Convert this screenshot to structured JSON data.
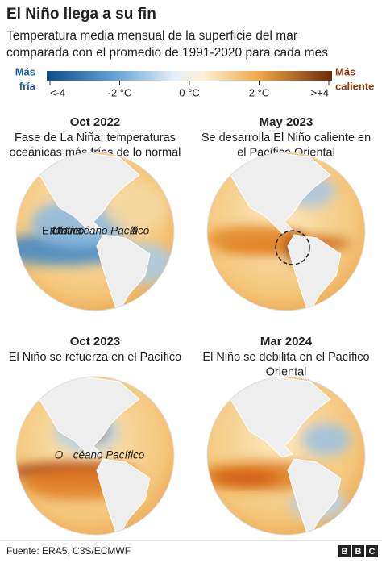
{
  "header": {
    "title": "El Niño llega a su fin",
    "subtitle_lines": [
      "Temperatura media mensual de la superficie del mar",
      "comparada con el promedio de 1991-2020 para cada mes"
    ]
  },
  "legend": {
    "cold_label_lines": [
      "Más",
      "fría"
    ],
    "hot_label_lines": [
      "Más",
      "caliente"
    ],
    "tick_labels": [
      "<-4",
      "-2 °C",
      "0 °C",
      "2 °C",
      ">+4"
    ]
  },
  "panels": [
    {
      "date": "Oct 2022",
      "caption_lines": [
        "Fase de La Niña: temperaturas",
        "oceánicas más frías de lo normal"
      ],
      "map_labels": [
        {
          "lines": [
            "EE.UU."
          ]
        },
        {
          "lines": [
            "Océano",
            "Atlántico"
          ]
        },
        {
          "lines": [
            "Océano Pacífico"
          ]
        }
      ]
    },
    {
      "date": "May 2023",
      "caption_lines": [
        "Se desarrolla El Niño caliente en",
        "el Pacífico Oriental"
      ],
      "map_labels": []
    },
    {
      "date": "Oct 2023",
      "caption_lines": [
        "El Niño se refuerza en el Pacífico"
      ],
      "map_labels": [
        {
          "lines": [
            "Océano Pacífico"
          ]
        }
      ]
    },
    {
      "date": "Mar 2024",
      "caption_lines": [
        "El Niño se debilita en el Pacífico",
        "Oriental"
      ],
      "map_labels": []
    }
  ],
  "footer": {
    "source": "Fuente: ERA5, C3S/ECMWF",
    "logo": [
      "B",
      "B",
      "C"
    ]
  }
}
